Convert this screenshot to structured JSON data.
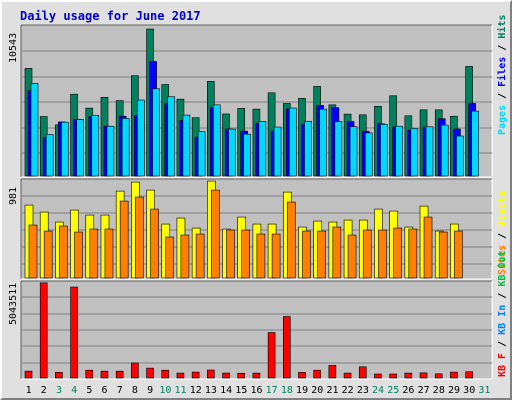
{
  "chart_data": [
    {
      "panel": "hits-files-pages",
      "type": "bar",
      "title": "Daily usage for June 2017",
      "ymax_label": "10543",
      "ylim": [
        0,
        10543
      ],
      "grid": true,
      "legend": [
        {
          "name": "Hits",
          "color": "#00805c"
        },
        {
          "name": "Files",
          "color": "#0000ff"
        },
        {
          "name": "Pages",
          "color": "#00d9ff"
        }
      ],
      "categories": [
        "1",
        "2",
        "3",
        "4",
        "5",
        "6",
        "7",
        "8",
        "9",
        "10",
        "11",
        "12",
        "13",
        "14",
        "15",
        "16",
        "17",
        "18",
        "19",
        "20",
        "21",
        "22",
        "23",
        "24",
        "25",
        "26",
        "27",
        "28",
        "29",
        "30",
        "31"
      ],
      "series": [
        {
          "name": "Hits",
          "values": [
            7560,
            4180,
            3600,
            5750,
            4770,
            5530,
            5300,
            7050,
            10330,
            6430,
            5400,
            4100,
            6650,
            4360,
            4750,
            4700,
            5850,
            5100,
            5460,
            6300,
            5000,
            4350,
            4300,
            4900,
            5640,
            4230,
            4650,
            4650,
            4200,
            7700,
            0
          ]
        },
        {
          "name": "Files",
          "values": [
            6000,
            2680,
            3800,
            3970,
            4180,
            3500,
            4200,
            4220,
            8050,
            5100,
            3900,
            2730,
            4800,
            3300,
            3150,
            3700,
            3150,
            4720,
            3640,
            4960,
            4800,
            3830,
            3150,
            3670,
            3450,
            3220,
            3440,
            4030,
            3300,
            5100,
            0
          ]
        },
        {
          "name": "Pages",
          "values": [
            6510,
            2920,
            3780,
            3970,
            4270,
            3500,
            4050,
            5340,
            6130,
            5570,
            4280,
            3120,
            5000,
            3300,
            2940,
            3840,
            3440,
            4780,
            3850,
            4700,
            3830,
            3470,
            3030,
            3630,
            3500,
            3350,
            3460,
            3580,
            2810,
            4560,
            0
          ]
        }
      ]
    },
    {
      "panel": "visits-sites",
      "type": "bar",
      "ymax_label": "981",
      "ylim": [
        0,
        981
      ],
      "grid": true,
      "legend": [
        {
          "name": "Visits",
          "color": "#ffff00"
        },
        {
          "name": "Sites",
          "color": "#ff8000"
        }
      ],
      "categories": [
        "1",
        "2",
        "3",
        "4",
        "5",
        "6",
        "7",
        "8",
        "9",
        "10",
        "11",
        "12",
        "13",
        "14",
        "15",
        "16",
        "17",
        "18",
        "19",
        "20",
        "21",
        "22",
        "23",
        "24",
        "25",
        "26",
        "27",
        "28",
        "29",
        "30",
        "31"
      ],
      "series": [
        {
          "name": "Visits",
          "values": [
            730,
            660,
            560,
            680,
            630,
            630,
            870,
            960,
            880,
            540,
            600,
            500,
            970,
            490,
            610,
            540,
            540,
            860,
            510,
            570,
            560,
            580,
            580,
            690,
            670,
            510,
            720,
            470,
            540,
            0,
            0
          ]
        },
        {
          "name": "Sites",
          "values": [
            530,
            470,
            520,
            460,
            490,
            490,
            770,
            810,
            690,
            410,
            430,
            440,
            880,
            480,
            480,
            440,
            440,
            760,
            470,
            470,
            510,
            430,
            480,
            480,
            500,
            490,
            610,
            460,
            470,
            0,
            0
          ]
        }
      ]
    },
    {
      "panel": "kbytes",
      "type": "bar",
      "ymax_label": "5043511",
      "ylim": [
        0,
        5043511
      ],
      "grid": true,
      "legend": [
        {
          "name": "KB F",
          "color": "#ff0000"
        },
        {
          "name": "KB In",
          "color": "#0080ff"
        },
        {
          "name": "KB Out",
          "color": "#00c040"
        }
      ],
      "categories": [
        "1",
        "2",
        "3",
        "4",
        "5",
        "6",
        "7",
        "8",
        "9",
        "10",
        "11",
        "12",
        "13",
        "14",
        "15",
        "16",
        "17",
        "18",
        "19",
        "20",
        "21",
        "22",
        "23",
        "24",
        "25",
        "26",
        "27",
        "28",
        "29",
        "30",
        "31"
      ],
      "series": [
        {
          "name": "KB F",
          "values": [
            360000,
            5000000,
            300000,
            4780000,
            410000,
            360000,
            360000,
            790000,
            520000,
            410000,
            260000,
            310000,
            420000,
            260000,
            250000,
            260000,
            2390000,
            3230000,
            300000,
            410000,
            660000,
            260000,
            590000,
            210000,
            210000,
            260000,
            270000,
            220000,
            310000,
            330000,
            0
          ]
        }
      ]
    }
  ],
  "x_axis": {
    "labels": [
      "1",
      "2",
      "3",
      "4",
      "5",
      "6",
      "7",
      "8",
      "9",
      "10",
      "11",
      "12",
      "13",
      "14",
      "15",
      "16",
      "17",
      "18",
      "19",
      "20",
      "21",
      "22",
      "23",
      "24",
      "25",
      "26",
      "27",
      "28",
      "29",
      "30",
      "31"
    ],
    "weekend_days": [
      "3",
      "4",
      "10",
      "11",
      "17",
      "18",
      "24",
      "25",
      "31"
    ],
    "weekday_color": "#000000",
    "weekend_color": "#00805c"
  },
  "colors": {
    "background": "#e0e0e0",
    "plot_background": "#c0c0c0",
    "grid": "#808080",
    "title": "#0000cc"
  }
}
